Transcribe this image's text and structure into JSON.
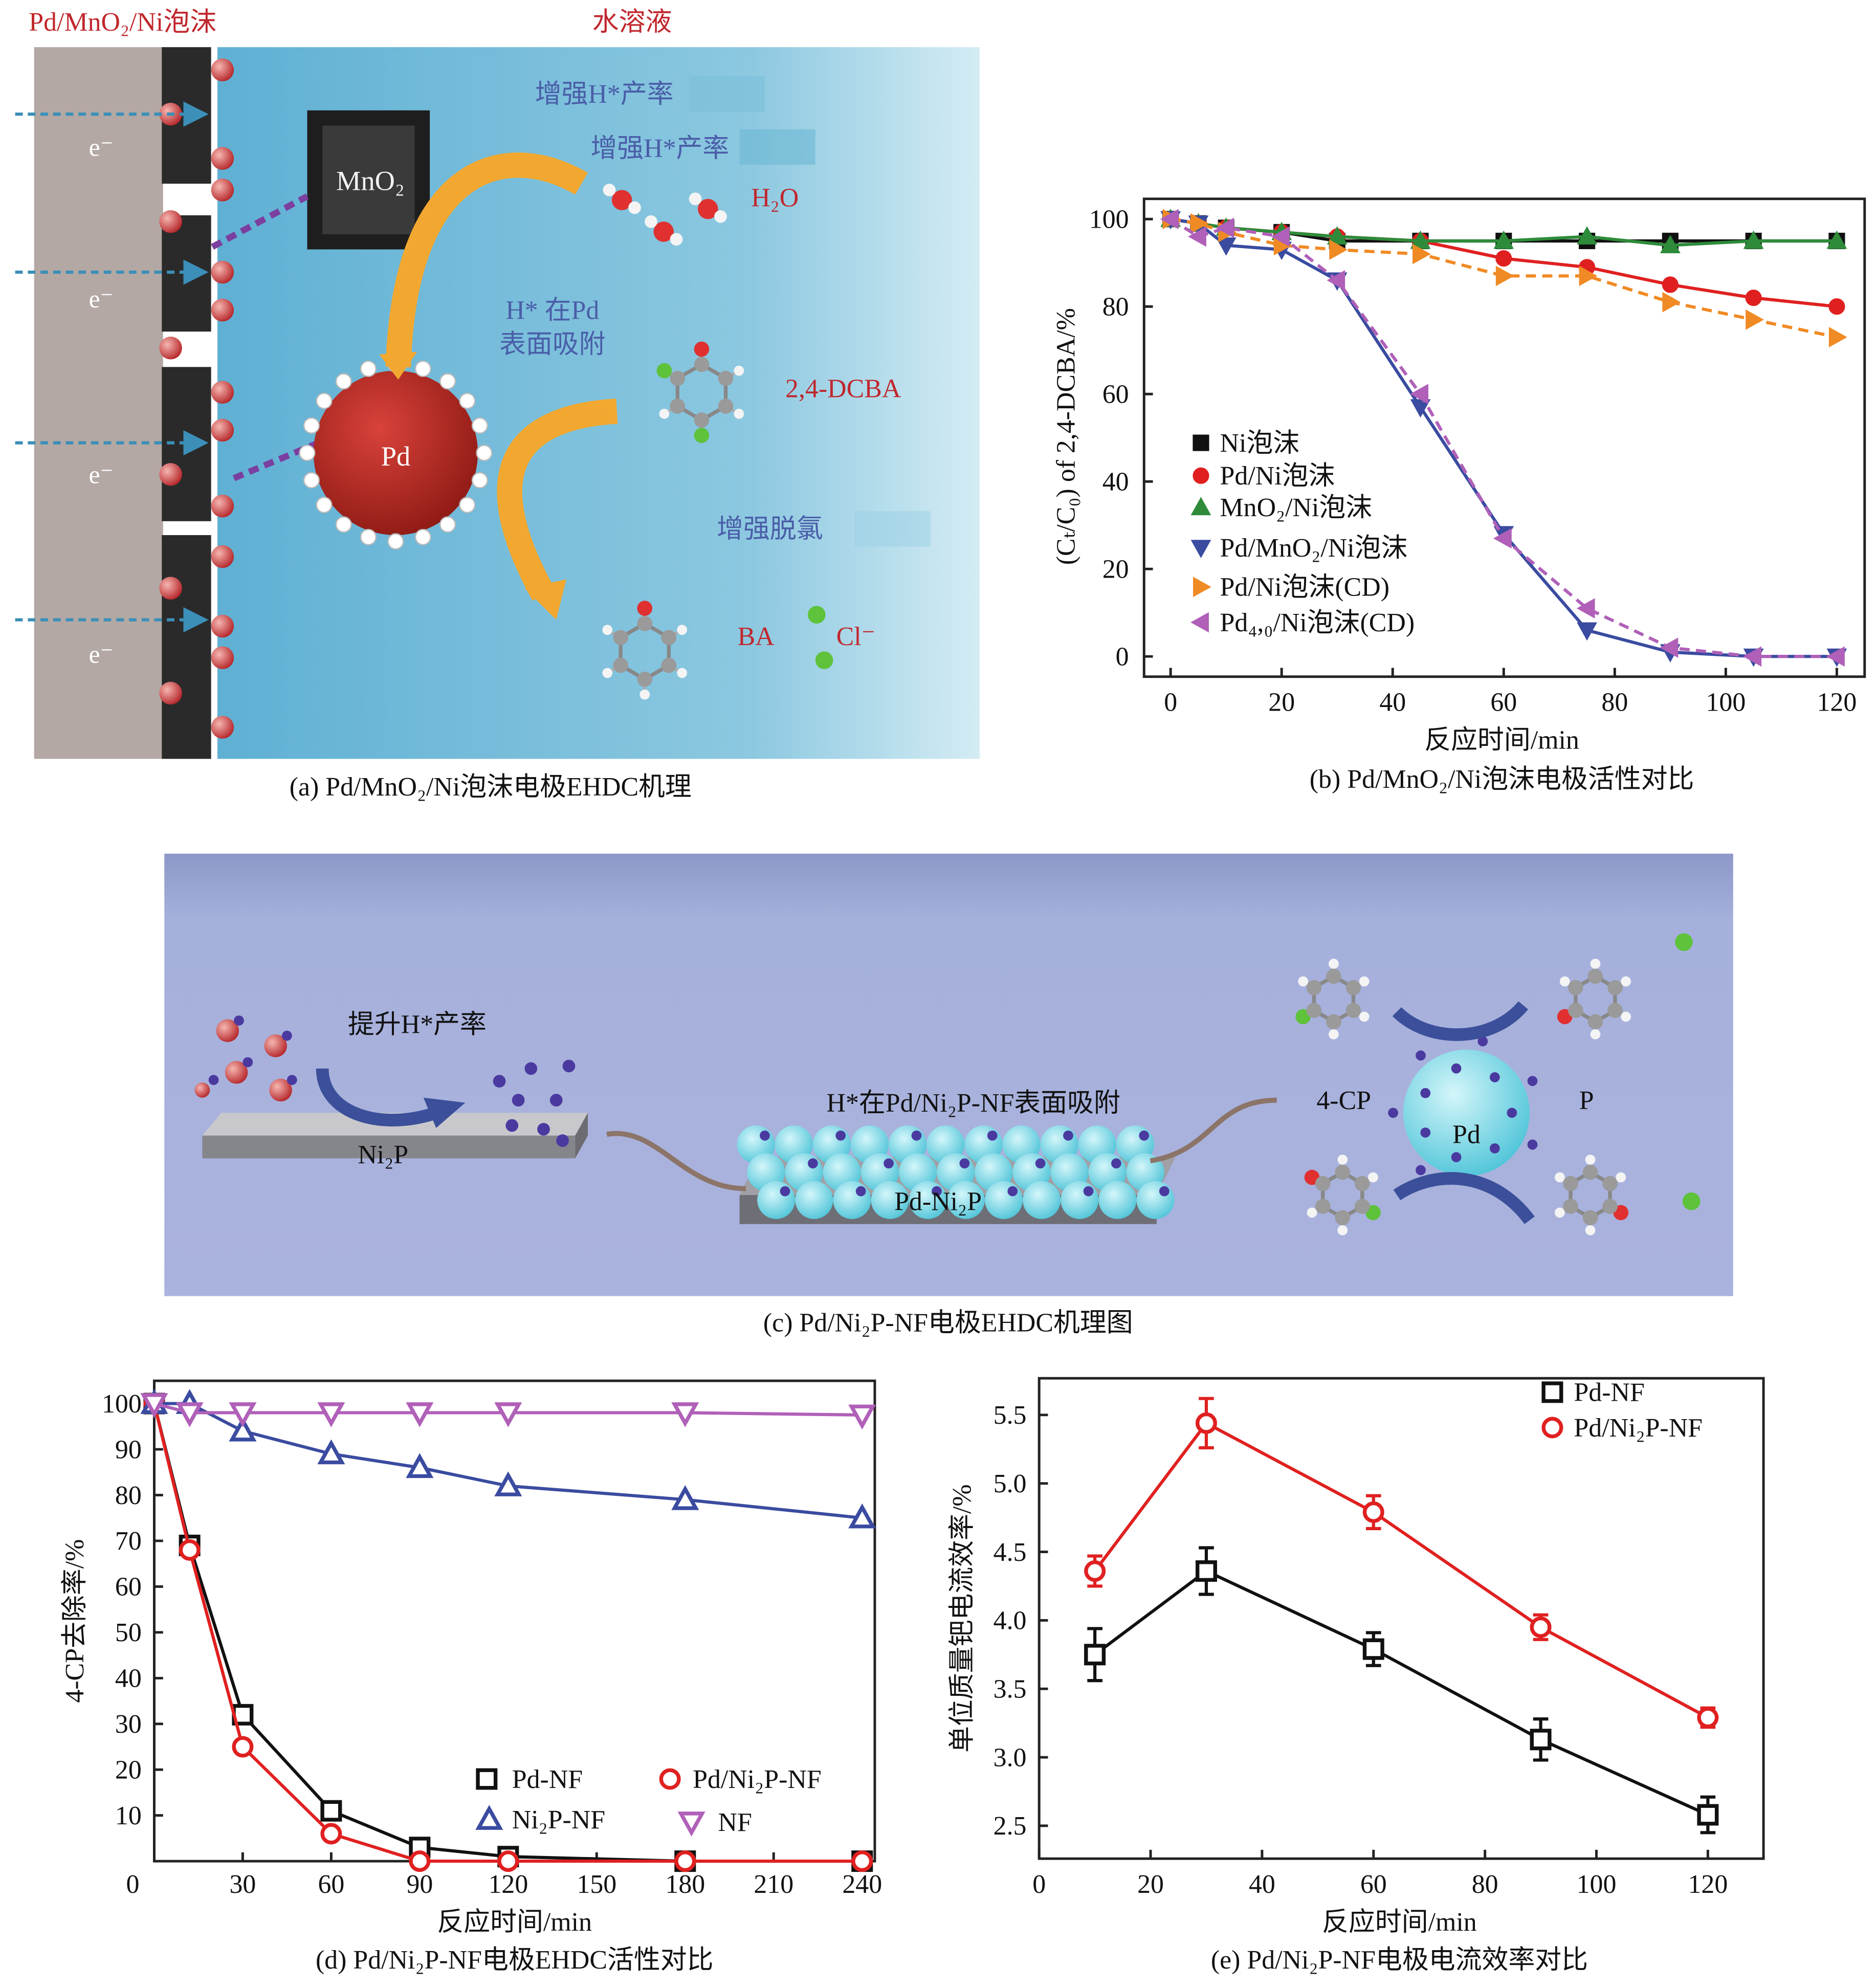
{
  "panel_a": {
    "title_left": "Pd/MnO₂/Ni泡沫",
    "title_right": "水溶液",
    "h_rate_1": "增强H*产率",
    "h_rate_2": "增强H*产率",
    "mno2": "MnO₂",
    "h2o": "H₂O",
    "adsorb_1": "H* 在Pd",
    "adsorb_2": "表面吸附",
    "dcba": "2,4-DCBA",
    "pd": "Pd",
    "dechlor": "增强脱氯",
    "ba": "BA",
    "cl": "Cl⁻",
    "electron": "e⁻",
    "caption": "(a) Pd/MnO₂/Ni泡沫电极EHDC机理"
  },
  "panel_c": {
    "h_rate": "提升H*产率",
    "ni2p": "Ni₂P",
    "adsorb": "H*在Pd/Ni₂P-NF表面吸附",
    "pd_ni2p": "Pd-Ni₂P",
    "cp": "4-CP",
    "pd": "Pd",
    "p": "P",
    "caption": "(c) Pd/Ni₂P-NF电极EHDC机理图"
  },
  "chart_data": [
    {
      "id": "b",
      "type": "line",
      "caption": "(b) Pd/MnO₂/Ni泡沫电极活性对比",
      "xlabel": "反应时间/min",
      "ylabel": "(Cₜ/C₀) of 2,4-DCBA/%",
      "xlim": [
        -5,
        125
      ],
      "ylim": [
        -5,
        105
      ],
      "xticks": [
        0,
        20,
        40,
        60,
        80,
        100,
        120
      ],
      "yticks": [
        0,
        20,
        40,
        60,
        80,
        100
      ],
      "legend": "center-left",
      "x": [
        0,
        5,
        10,
        20,
        30,
        45,
        60,
        75,
        90,
        105,
        120
      ],
      "series": [
        {
          "name": "Ni泡沫",
          "marker": "square",
          "color": "#111111",
          "dash": false,
          "values": [
            100,
            99,
            98,
            97,
            95,
            95,
            95,
            95,
            95,
            95,
            95
          ]
        },
        {
          "name": "Pd/Ni泡沫",
          "marker": "circle",
          "color": "#e02020",
          "dash": false,
          "values": [
            100,
            99,
            98,
            97,
            96,
            95,
            91,
            89,
            85,
            82,
            80
          ]
        },
        {
          "name": "MnO₂/Ni泡沫",
          "marker": "tri-up",
          "color": "#2e8b3a",
          "dash": false,
          "values": [
            100,
            99,
            98,
            97,
            96,
            95,
            95,
            96,
            94,
            95,
            95
          ]
        },
        {
          "name": "Pd/MnO₂/Ni泡沫",
          "marker": "tri-down",
          "color": "#3a4ba0",
          "dash": false,
          "values": [
            100,
            99,
            94,
            93,
            86,
            57,
            28,
            6,
            1,
            0,
            0
          ]
        },
        {
          "name": "Pd/Ni泡沫(CD)",
          "marker": "tri-right",
          "color": "#f08a24",
          "dash": true,
          "values": [
            100,
            99,
            97,
            94,
            93,
            92,
            87,
            87,
            81,
            77,
            73
          ]
        },
        {
          "name": "Pd₄,₀/Ni泡沫(CD)",
          "marker": "tri-left",
          "color": "#b060b8",
          "dash": true,
          "values": [
            100,
            96,
            98,
            96,
            86,
            60,
            27,
            11,
            2,
            0,
            0
          ]
        }
      ]
    },
    {
      "id": "d",
      "type": "line",
      "caption": "(d) Pd/Ni₂P-NF电极EHDC活性对比",
      "xlabel": "反应时间/min",
      "ylabel": "4-CP去除率/%",
      "xlim": [
        0,
        245
      ],
      "ylim": [
        0,
        105
      ],
      "xticks": [
        0,
        30,
        60,
        90,
        120,
        150,
        180,
        210,
        240
      ],
      "yticks": [
        10,
        20,
        30,
        40,
        50,
        60,
        70,
        80,
        90,
        100
      ],
      "legend": "bottom-right",
      "x": [
        0,
        12,
        30,
        60,
        90,
        120,
        180,
        240
      ],
      "series": [
        {
          "name": "Pd-NF",
          "marker": "square-open",
          "color": "#111111",
          "values": [
            100,
            69,
            32,
            11,
            3,
            1,
            0,
            0
          ]
        },
        {
          "name": "Pd/Ni₂P-NF",
          "marker": "circle-open",
          "color": "#e02020",
          "values": [
            100,
            68,
            25,
            6,
            0,
            0,
            0,
            0
          ]
        },
        {
          "name": "Ni₂P-NF",
          "marker": "tri-up-open",
          "color": "#3a4ba0",
          "values": [
            100,
            100,
            94,
            89,
            86,
            82,
            79,
            75
          ]
        },
        {
          "name": "NF",
          "marker": "tri-down-open",
          "color": "#b060b8",
          "values": [
            100,
            98,
            98,
            98,
            98,
            98,
            98,
            97.5
          ]
        }
      ]
    },
    {
      "id": "e",
      "type": "line",
      "caption": "(e) Pd/Ni₂P-NF电极电流效率对比",
      "xlabel": "反应时间/min",
      "ylabel": "单位质量钯电流效率/%",
      "xlim": [
        0,
        130
      ],
      "ylim": [
        2.26,
        5.77
      ],
      "xticks": [
        0,
        20,
        40,
        60,
        80,
        100,
        120
      ],
      "yticks": [
        2.5,
        3.0,
        3.5,
        4.0,
        4.5,
        5.0,
        5.5
      ],
      "ytick_labels": [
        "2.5",
        "3.0",
        "3.5",
        "4.0",
        "4.5",
        "5.0",
        "5.5"
      ],
      "legend": "top-right",
      "x": [
        10,
        30,
        60,
        90,
        120
      ],
      "series": [
        {
          "name": "Pd-NF",
          "marker": "square-open",
          "color": "#111111",
          "values": [
            3.75,
            4.36,
            3.79,
            3.13,
            2.58
          ],
          "errors": [
            0.19,
            0.17,
            0.12,
            0.15,
            0.13
          ]
        },
        {
          "name": "Pd/Ni₂P-NF",
          "marker": "circle-open",
          "color": "#e02020",
          "values": [
            4.36,
            5.44,
            4.79,
            3.95,
            3.29
          ],
          "errors": [
            0.11,
            0.18,
            0.12,
            0.09,
            0.07
          ]
        }
      ]
    }
  ]
}
